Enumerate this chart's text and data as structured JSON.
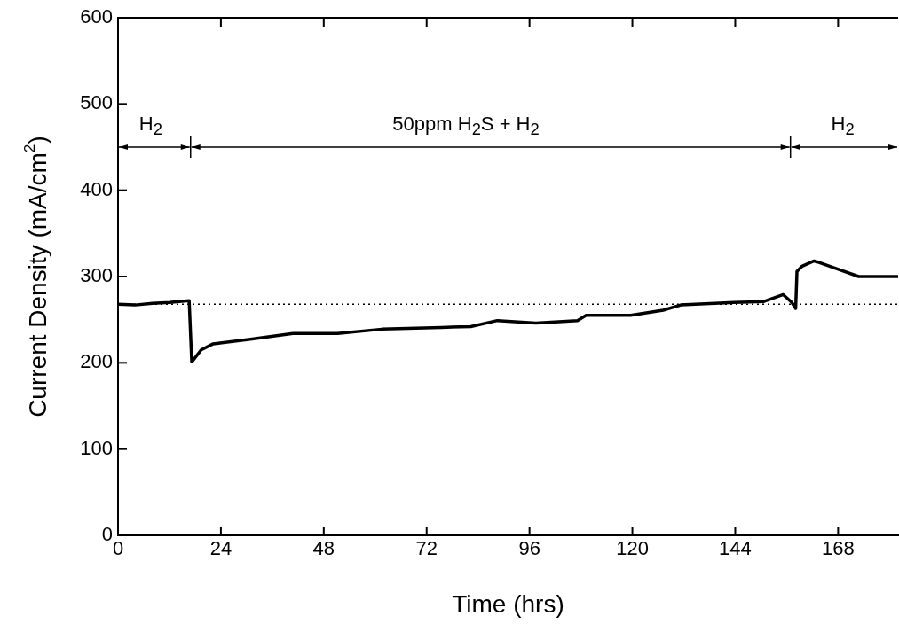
{
  "chart_data": {
    "type": "line",
    "xlabel": "Time (hrs)",
    "ylabel": "Current Density (mA/cm$^{2}$)",
    "x": [
      0,
      4,
      8,
      12,
      16.6,
      17.2,
      19.4,
      22.2,
      30.5,
      40.8,
      51.2,
      61.6,
      75.4,
      82.3,
      88.5,
      97.5,
      107.2,
      109.2,
      119.6,
      127.2,
      131.3,
      143.7,
      150.7,
      155.2,
      157.2,
      158.1,
      158.4,
      159.6,
      162.4,
      163.1,
      166.6,
      172.8,
      181.1,
      182
    ],
    "values": [
      268,
      267,
      269,
      270,
      272,
      201,
      215,
      222,
      227,
      234,
      234,
      239,
      241,
      242,
      249,
      246,
      249,
      255,
      255,
      261,
      267,
      270,
      271,
      279,
      270,
      263,
      306,
      312,
      318,
      317,
      311,
      300,
      300,
      300
    ],
    "color": "#000000",
    "marker": "none",
    "line_style": "solid",
    "xlim": [
      0,
      182
    ],
    "xticks": [
      0,
      24,
      48,
      72,
      96,
      120,
      144,
      168
    ],
    "ylim": [
      0,
      600
    ],
    "yticks": [
      0,
      100,
      200,
      300,
      400,
      500,
      600
    ],
    "grid": false,
    "legend": false,
    "ref_lines": [
      {
        "axis": "y",
        "value": 268,
        "line_style": "dotted",
        "color": "#000000"
      }
    ],
    "annotations": [
      "H$_{2}$",
      "50ppm H$_{2}$S + H$_{2}$",
      "H$_{2}$"
    ]
  }
}
